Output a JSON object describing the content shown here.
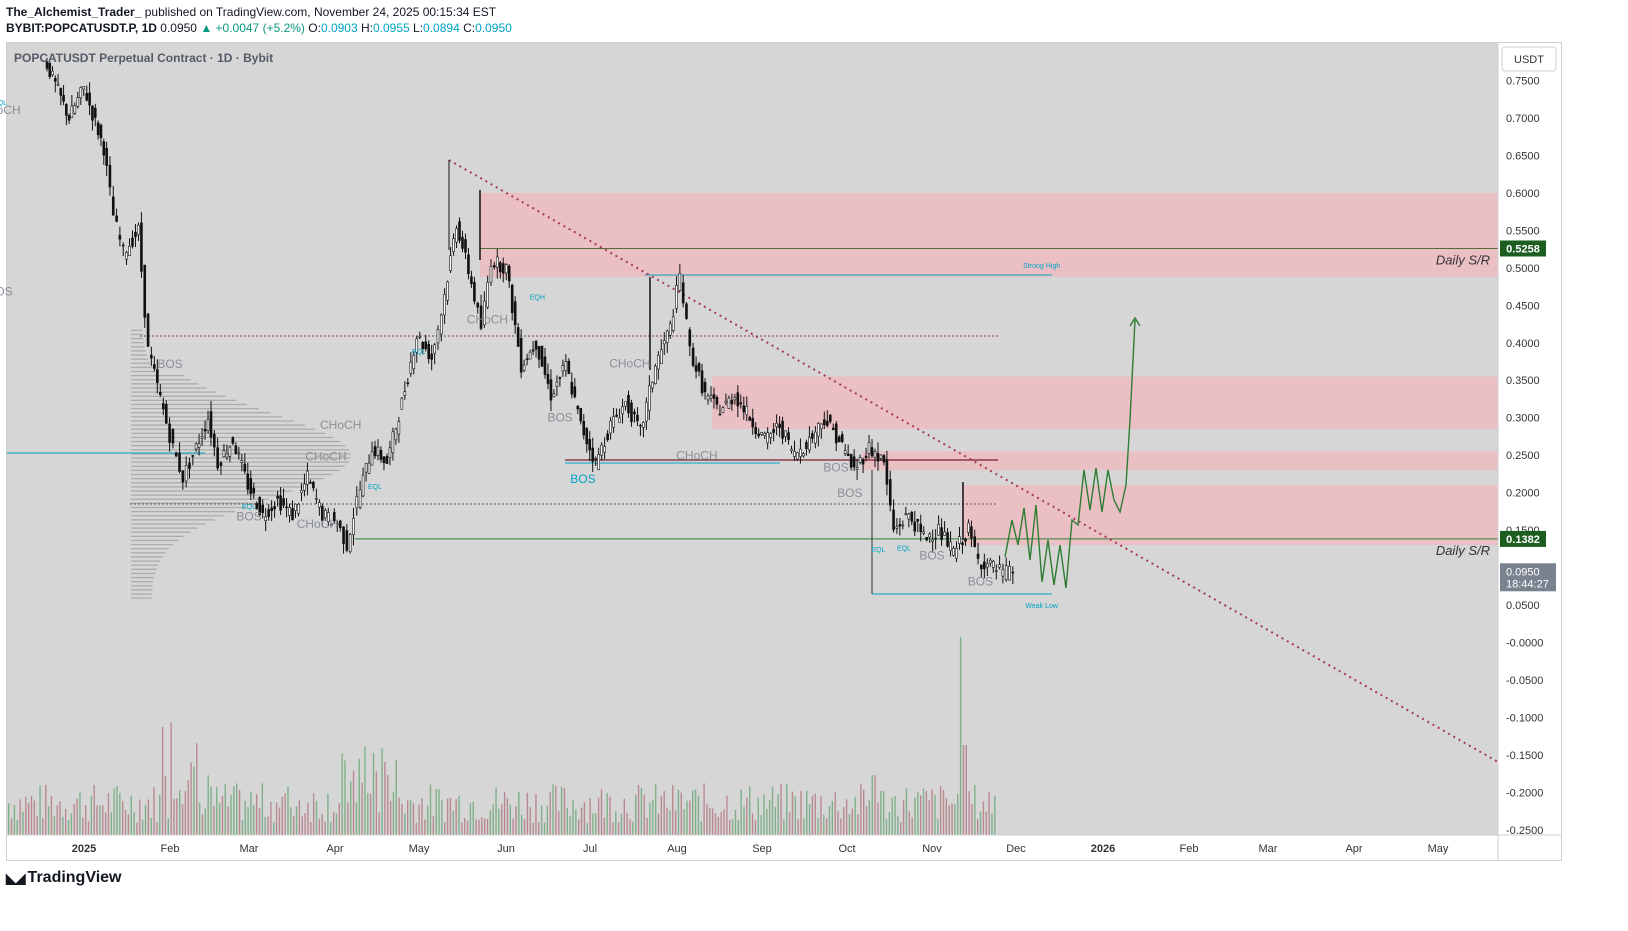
{
  "header": {
    "author": "The_Alchemist_Trader_",
    "published": "published on TradingView.com, November 24, 2025 00:15:34 EST",
    "symbol": "BYBIT:POPCATUSDT.P, 1D",
    "price": "0.0950",
    "change": "▲ +0.0047 (+5.2%)",
    "open_label": "O:",
    "open_value": "0.0903",
    "high_label": "H:",
    "high_value": "0.0955",
    "low_label": "L:",
    "low_value": "0.0894",
    "close_label": "C:",
    "close_value": "0.0950"
  },
  "chart_name": "POPCATUSDT Perpetual Contract · 1D · Bybit",
  "logo_text": "TradingView",
  "logo_icon": "tradingview-logo-icon",
  "colors": {
    "up": "#089981",
    "cyan": "#00a3c4",
    "supply_zone": "#f2b8bf",
    "trendline": "#a53a55",
    "projection": "#2e7d32",
    "sr_label": "#1b5e20"
  },
  "chart_data": {
    "type": "candlestick",
    "title": "POPCATUSDT Perpetual Contract · 1D · Bybit",
    "currency": "USDT",
    "y_axis_ticks": [
      "0.7500",
      "0.7000",
      "0.6500",
      "0.6000",
      "0.5500",
      "0.5000",
      "0.4500",
      "0.4000",
      "0.3500",
      "0.3000",
      "0.2500",
      "0.2000",
      "0.1500",
      "0.1000",
      "0.0500",
      "-0.0000",
      "-0.0500",
      "-0.1000",
      "-0.1500",
      "-0.2000",
      "-0.2500"
    ],
    "ylim": [
      -0.26,
      0.78
    ],
    "x_axis_ticks": [
      "2025",
      "Feb",
      "Mar",
      "Apr",
      "May",
      "Jun",
      "Jul",
      "Aug",
      "Sep",
      "Oct",
      "Nov",
      "Dec",
      "2026",
      "Feb",
      "Mar",
      "Apr",
      "May"
    ],
    "price_path": [
      [
        0,
        0.78
      ],
      [
        0.5,
        0.7
      ],
      [
        0.8,
        0.74
      ],
      [
        1.2,
        0.66
      ],
      [
        1.4,
        0.57
      ],
      [
        1.6,
        0.52
      ],
      [
        1.9,
        0.55
      ],
      [
        2.1,
        0.39
      ],
      [
        2.4,
        0.31
      ],
      [
        2.6,
        0.26
      ],
      [
        2.8,
        0.22
      ],
      [
        3.0,
        0.25
      ],
      [
        3.3,
        0.3
      ],
      [
        3.5,
        0.24
      ],
      [
        3.8,
        0.27
      ],
      [
        4.1,
        0.21
      ],
      [
        4.4,
        0.17
      ],
      [
        4.7,
        0.19
      ],
      [
        5.0,
        0.17
      ],
      [
        5.3,
        0.22
      ],
      [
        5.6,
        0.17
      ],
      [
        5.9,
        0.16
      ],
      [
        6.1,
        0.13
      ],
      [
        6.3,
        0.19
      ],
      [
        6.6,
        0.26
      ],
      [
        6.9,
        0.24
      ],
      [
        7.2,
        0.32
      ],
      [
        7.5,
        0.41
      ],
      [
        7.8,
        0.38
      ],
      [
        8.0,
        0.44
      ],
      [
        8.3,
        0.56
      ],
      [
        8.6,
        0.48
      ],
      [
        8.8,
        0.42
      ],
      [
        9.0,
        0.51
      ],
      [
        9.3,
        0.5
      ],
      [
        9.6,
        0.37
      ],
      [
        9.9,
        0.4
      ],
      [
        10.2,
        0.33
      ],
      [
        10.5,
        0.37
      ],
      [
        10.8,
        0.29
      ],
      [
        11.1,
        0.24
      ],
      [
        11.4,
        0.29
      ],
      [
        11.7,
        0.32
      ],
      [
        12.0,
        0.28
      ],
      [
        12.3,
        0.37
      ],
      [
        12.6,
        0.42
      ],
      [
        12.8,
        0.49
      ],
      [
        13.0,
        0.39
      ],
      [
        13.3,
        0.33
      ],
      [
        13.6,
        0.31
      ],
      [
        13.9,
        0.33
      ],
      [
        14.2,
        0.3
      ],
      [
        14.5,
        0.27
      ],
      [
        14.8,
        0.29
      ],
      [
        15.1,
        0.25
      ],
      [
        15.4,
        0.27
      ],
      [
        15.7,
        0.3
      ],
      [
        16.0,
        0.27
      ],
      [
        16.3,
        0.23
      ],
      [
        16.6,
        0.26
      ],
      [
        16.9,
        0.24
      ],
      [
        17.1,
        0.15
      ],
      [
        17.4,
        0.17
      ],
      [
        17.7,
        0.14
      ],
      [
        18.0,
        0.15
      ],
      [
        18.3,
        0.12
      ],
      [
        18.6,
        0.15
      ],
      [
        18.8,
        0.11
      ],
      [
        19.1,
        0.1
      ],
      [
        19.3,
        0.092
      ],
      [
        19.5,
        0.095
      ]
    ],
    "volume_profile": "left visible-range volume profile, point of control at 0.2500",
    "annotations": [
      {
        "text": "EQL",
        "price": 0.717,
        "date": "Jan 10"
      },
      {
        "text": "CHoCH",
        "price": 0.705,
        "date": "Jan 15"
      },
      {
        "text": "BOS",
        "price": 0.463,
        "date": "Jan 27"
      },
      {
        "text": "BOS",
        "price": 0.366,
        "date": "Feb 1"
      },
      {
        "text": "CHoCH",
        "price": 0.285,
        "date": "Apr 3"
      },
      {
        "text": "CHoCH",
        "price": 0.243,
        "date": "Mar 28"
      },
      {
        "text": "EQL",
        "price": 0.178,
        "date": "Mar 1"
      },
      {
        "text": "BOS",
        "price": 0.163,
        "date": "Mar 1"
      },
      {
        "text": "CHoCH",
        "price": 0.153,
        "date": "Mar 25"
      },
      {
        "text": "EQL",
        "price": 0.205,
        "date": "Apr 15"
      },
      {
        "text": "EQL",
        "price": 0.385,
        "date": "May 1"
      },
      {
        "text": "CHoCH",
        "price": 0.426,
        "date": "May 25"
      },
      {
        "text": "EQH",
        "price": 0.458,
        "date": "Jun 12"
      },
      {
        "text": "CHoCH",
        "price": 0.367,
        "date": "Jul 15"
      },
      {
        "text": "BOS",
        "price": 0.295,
        "date": "Jun 20"
      },
      {
        "text": "BOS",
        "price": 0.213,
        "date": "Jun 28"
      },
      {
        "text": "CHoCH",
        "price": 0.244,
        "date": "Aug 8"
      },
      {
        "text": "BOS",
        "price": 0.228,
        "date": "Sep 27"
      },
      {
        "text": "BOS",
        "price": 0.194,
        "date": "Oct 2"
      },
      {
        "text": "EQL",
        "price": 0.121,
        "date": "Oct 12"
      },
      {
        "text": "EQL",
        "price": 0.123,
        "date": "Oct 21"
      },
      {
        "text": "BOS",
        "price": 0.111,
        "date": "Nov 1"
      },
      {
        "text": "BOS",
        "price": 0.076,
        "date": "Nov 18"
      },
      {
        "text": "Strong High",
        "price": 0.5,
        "date": "Dec 10"
      },
      {
        "text": "Weak Low",
        "price": 0.046,
        "date": "Dec 10"
      }
    ],
    "horizontal_levels": [
      {
        "label": "Daily S/R",
        "price": 0.5258,
        "tag": "0.5258"
      },
      {
        "label": "Daily S/R",
        "price": 0.1382,
        "tag": "0.1382"
      }
    ],
    "last_price_tag": "0.0950",
    "countdown": "18:44:27",
    "supply_zones": [
      [
        0.488,
        0.6
      ],
      [
        0.285,
        0.355
      ],
      [
        0.23,
        0.255
      ],
      [
        0.13,
        0.21
      ]
    ],
    "trendline": {
      "from": [
        "May 12",
        0.645
      ],
      "to": [
        "May 31 2026",
        -0.165
      ],
      "style": "dotted"
    },
    "projection": "hand-drawn green wave path consolidating 0.06–0.23 in Dec–Jan, then breakout arrow to 0.43"
  }
}
